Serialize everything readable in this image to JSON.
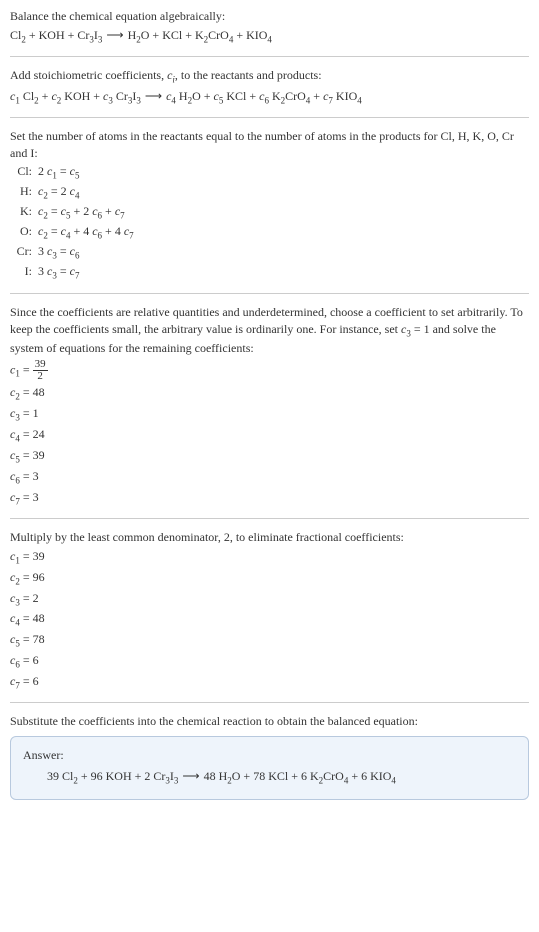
{
  "colors": {
    "text": "#333333",
    "rule": "#cccccc",
    "answer_bg": "#eef4fb",
    "answer_border": "#b8c9de"
  },
  "typography": {
    "base_fontsize_pt": 12,
    "sub_fontsize_pt": 9,
    "family": "Georgia/Times serif"
  },
  "sec1": {
    "intro": "Balance the chemical equation algebraically:",
    "lhs": "Cl₂ + KOH + Cr₃I₃",
    "arrow": "⟶",
    "rhs": "H₂O + KCl + K₂CrO₄ + KIO₄",
    "equation_tokens": [
      {
        "t": "Cl"
      },
      {
        "sub": "2"
      },
      {
        "t": " + KOH + Cr"
      },
      {
        "sub": "3"
      },
      {
        "t": "I"
      },
      {
        "sub": "3"
      },
      {
        "arrow": "⟶"
      },
      {
        "t": "H"
      },
      {
        "sub": "2"
      },
      {
        "t": "O + KCl + K"
      },
      {
        "sub": "2"
      },
      {
        "t": "CrO"
      },
      {
        "sub": "4"
      },
      {
        "t": " + KIO"
      },
      {
        "sub": "4"
      }
    ]
  },
  "sec2": {
    "intro": "Add stoichiometric coefficients, cᵢ, to the reactants and products:",
    "equation_tokens": [
      {
        "it": "c"
      },
      {
        "sub": "1"
      },
      {
        "t": " Cl"
      },
      {
        "sub": "2"
      },
      {
        "t": " + "
      },
      {
        "it": "c"
      },
      {
        "sub": "2"
      },
      {
        "t": " KOH + "
      },
      {
        "it": "c"
      },
      {
        "sub": "3"
      },
      {
        "t": " Cr"
      },
      {
        "sub": "3"
      },
      {
        "t": "I"
      },
      {
        "sub": "3"
      },
      {
        "arrow": "⟶"
      },
      {
        "it": "c"
      },
      {
        "sub": "4"
      },
      {
        "t": " H"
      },
      {
        "sub": "2"
      },
      {
        "t": "O + "
      },
      {
        "it": "c"
      },
      {
        "sub": "5"
      },
      {
        "t": " KCl + "
      },
      {
        "it": "c"
      },
      {
        "sub": "6"
      },
      {
        "t": " K"
      },
      {
        "sub": "2"
      },
      {
        "t": "CrO"
      },
      {
        "sub": "4"
      },
      {
        "t": " + "
      },
      {
        "it": "c"
      },
      {
        "sub": "7"
      },
      {
        "t": " KIO"
      },
      {
        "sub": "4"
      }
    ]
  },
  "sec3": {
    "intro": "Set the number of atoms in the reactants equal to the number of atoms in the products for Cl, H, K, O, Cr and I:",
    "rows": [
      {
        "label": "Cl:",
        "tokens": [
          {
            "t": "2 "
          },
          {
            "it": "c"
          },
          {
            "sub": "1"
          },
          {
            "t": " = "
          },
          {
            "it": "c"
          },
          {
            "sub": "5"
          }
        ]
      },
      {
        "label": "H:",
        "tokens": [
          {
            "it": "c"
          },
          {
            "sub": "2"
          },
          {
            "t": " = 2 "
          },
          {
            "it": "c"
          },
          {
            "sub": "4"
          }
        ]
      },
      {
        "label": "K:",
        "tokens": [
          {
            "it": "c"
          },
          {
            "sub": "2"
          },
          {
            "t": " = "
          },
          {
            "it": "c"
          },
          {
            "sub": "5"
          },
          {
            "t": " + 2 "
          },
          {
            "it": "c"
          },
          {
            "sub": "6"
          },
          {
            "t": " + "
          },
          {
            "it": "c"
          },
          {
            "sub": "7"
          }
        ]
      },
      {
        "label": "O:",
        "tokens": [
          {
            "it": "c"
          },
          {
            "sub": "2"
          },
          {
            "t": " = "
          },
          {
            "it": "c"
          },
          {
            "sub": "4"
          },
          {
            "t": " + 4 "
          },
          {
            "it": "c"
          },
          {
            "sub": "6"
          },
          {
            "t": " + 4 "
          },
          {
            "it": "c"
          },
          {
            "sub": "7"
          }
        ]
      },
      {
        "label": "Cr:",
        "tokens": [
          {
            "t": "3 "
          },
          {
            "it": "c"
          },
          {
            "sub": "3"
          },
          {
            "t": " = "
          },
          {
            "it": "c"
          },
          {
            "sub": "6"
          }
        ]
      },
      {
        "label": "I:",
        "tokens": [
          {
            "t": "3 "
          },
          {
            "it": "c"
          },
          {
            "sub": "3"
          },
          {
            "t": " = "
          },
          {
            "it": "c"
          },
          {
            "sub": "7"
          }
        ]
      }
    ]
  },
  "sec4": {
    "intro": "Since the coefficients are relative quantities and underdetermined, choose a coefficient to set arbitrarily. To keep the coefficients small, the arbitrary value is ordinarily one. For instance, set c₃ = 1 and solve the system of equations for the remaining coefficients:",
    "lines": [
      {
        "tokens": [
          {
            "it": "c"
          },
          {
            "sub": "1"
          },
          {
            "t": " = "
          },
          {
            "frac": {
              "n": "39",
              "d": "2"
            }
          }
        ]
      },
      {
        "tokens": [
          {
            "it": "c"
          },
          {
            "sub": "2"
          },
          {
            "t": " = 48"
          }
        ]
      },
      {
        "tokens": [
          {
            "it": "c"
          },
          {
            "sub": "3"
          },
          {
            "t": " = 1"
          }
        ]
      },
      {
        "tokens": [
          {
            "it": "c"
          },
          {
            "sub": "4"
          },
          {
            "t": " = 24"
          }
        ]
      },
      {
        "tokens": [
          {
            "it": "c"
          },
          {
            "sub": "5"
          },
          {
            "t": " = 39"
          }
        ]
      },
      {
        "tokens": [
          {
            "it": "c"
          },
          {
            "sub": "6"
          },
          {
            "t": " = 3"
          }
        ]
      },
      {
        "tokens": [
          {
            "it": "c"
          },
          {
            "sub": "7"
          },
          {
            "t": " = 3"
          }
        ]
      }
    ]
  },
  "sec5": {
    "intro": "Multiply by the least common denominator, 2, to eliminate fractional coefficients:",
    "lines": [
      {
        "tokens": [
          {
            "it": "c"
          },
          {
            "sub": "1"
          },
          {
            "t": " = 39"
          }
        ]
      },
      {
        "tokens": [
          {
            "it": "c"
          },
          {
            "sub": "2"
          },
          {
            "t": " = 96"
          }
        ]
      },
      {
        "tokens": [
          {
            "it": "c"
          },
          {
            "sub": "3"
          },
          {
            "t": " = 2"
          }
        ]
      },
      {
        "tokens": [
          {
            "it": "c"
          },
          {
            "sub": "4"
          },
          {
            "t": " = 48"
          }
        ]
      },
      {
        "tokens": [
          {
            "it": "c"
          },
          {
            "sub": "5"
          },
          {
            "t": " = 78"
          }
        ]
      },
      {
        "tokens": [
          {
            "it": "c"
          },
          {
            "sub": "6"
          },
          {
            "t": " = 6"
          }
        ]
      },
      {
        "tokens": [
          {
            "it": "c"
          },
          {
            "sub": "7"
          },
          {
            "t": " = 6"
          }
        ]
      }
    ]
  },
  "sec6": {
    "intro": "Substitute the coefficients into the chemical reaction to obtain the balanced equation:"
  },
  "answer": {
    "title": "Answer:",
    "equation_tokens": [
      {
        "t": "39 Cl"
      },
      {
        "sub": "2"
      },
      {
        "t": " + 96 KOH + 2 Cr"
      },
      {
        "sub": "3"
      },
      {
        "t": "I"
      },
      {
        "sub": "3"
      },
      {
        "arrow": "⟶"
      },
      {
        "t": "48 H"
      },
      {
        "sub": "2"
      },
      {
        "t": "O + 78 KCl + 6 K"
      },
      {
        "sub": "2"
      },
      {
        "t": "CrO"
      },
      {
        "sub": "4"
      },
      {
        "t": " + 6 KIO"
      },
      {
        "sub": "4"
      }
    ]
  }
}
